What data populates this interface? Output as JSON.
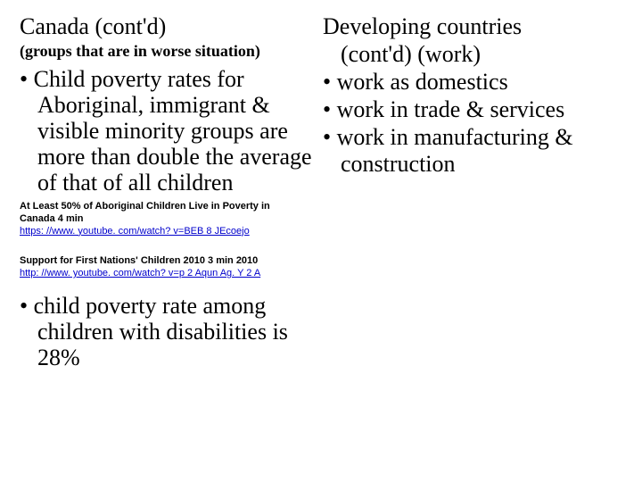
{
  "left": {
    "title": "Canada (cont'd)",
    "subtitle": "(groups that are in worse situation)",
    "bullet1": "Child poverty rates for Aboriginal, immigrant & visible minority groups are more than double the average of that of all children",
    "ref1_line1": "At Least 50% of Aboriginal Children Live in Poverty in",
    "ref1_line2": "Canada  4 min",
    "ref1_link": "https: //www. youtube. com/watch? v=BEB 8 JEcoejo",
    "ref2_line1": "Support for First Nations' Children  2010  3 min 2010",
    "ref2_link": "http: //www. youtube. com/watch? v=p 2 Aqun Ag. Y 2 A",
    "bullet2": "child poverty rate among children with disabilities is 28%"
  },
  "right": {
    "title_line1": "Developing countries",
    "title_line2": "(cont'd) (work)",
    "bullet1": "work as domestics",
    "bullet2": "work in trade & services",
    "bullet3": "work in manufacturing & construction"
  },
  "colors": {
    "background": "#ffffff",
    "text": "#000000",
    "link": "#0000cc"
  }
}
